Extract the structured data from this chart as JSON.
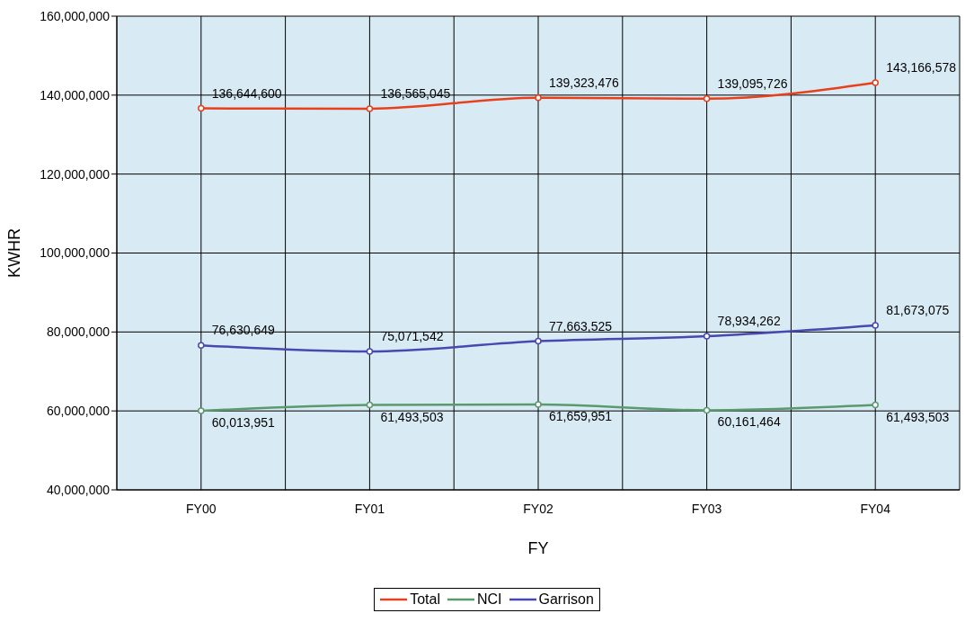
{
  "chart_data": {
    "type": "line",
    "xlabel": "FY",
    "ylabel": "KWHR",
    "categories": [
      "FY00",
      "FY01",
      "FY02",
      "FY03",
      "FY04"
    ],
    "series": [
      {
        "name": "Total",
        "color": "#e8401c",
        "values": [
          136644600,
          136565045,
          139323476,
          139095726,
          143166578
        ],
        "value_labels": [
          "136,644,600",
          "136,565,045",
          "139,323,476",
          "139,095,726",
          "143,166,578"
        ]
      },
      {
        "name": "NCI",
        "color": "#5a9a6e",
        "values": [
          60013951,
          61493503,
          61659951,
          60161464,
          61493503
        ],
        "value_labels": [
          "60,013,951",
          "61,493,503",
          "61,659,951",
          "60,161,464",
          "61,493,503"
        ]
      },
      {
        "name": "Garrison",
        "color": "#4848b0",
        "values": [
          76630649,
          75071542,
          77663525,
          78934262,
          81673075
        ],
        "value_labels": [
          "76,630,649",
          "75,071,542",
          "77,663,525",
          "78,934,262",
          "81,673,075"
        ]
      }
    ],
    "ylim": [
      40000000,
      160000000
    ],
    "yticks": [
      {
        "value": 40000000,
        "label": "40,000,000"
      },
      {
        "value": 60000000,
        "label": "60,000,000"
      },
      {
        "value": 80000000,
        "label": "80,000,000"
      },
      {
        "value": 100000000,
        "label": "100,000,000"
      },
      {
        "value": 120000000,
        "label": "120,000,000"
      },
      {
        "value": 140000000,
        "label": "140,000,000"
      },
      {
        "value": 160000000,
        "label": "160,000,000"
      }
    ],
    "grid": true,
    "legend": "bottom",
    "marker": "circle",
    "line_style": "solid"
  }
}
